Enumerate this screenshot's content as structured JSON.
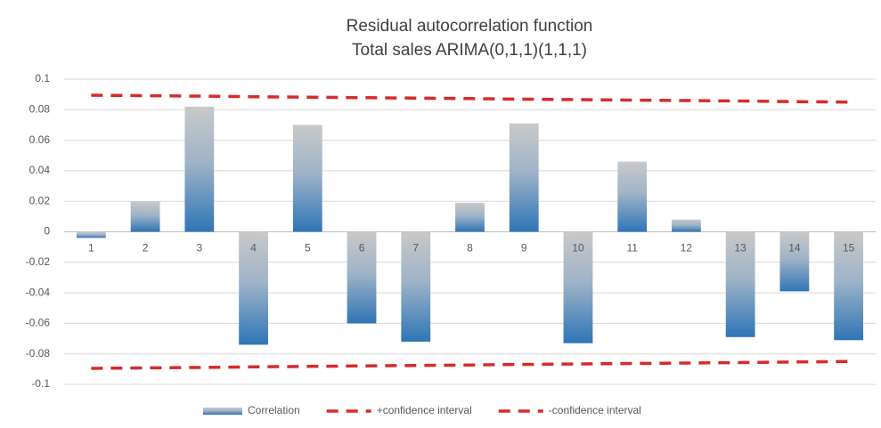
{
  "chart_data": {
    "type": "bar",
    "title": "Residual autocorrelation function",
    "subtitle": "Total sales ARIMA(0,1,1)(1,1,1)",
    "categories": [
      "1",
      "2",
      "3",
      "4",
      "5",
      "6",
      "7",
      "8",
      "9",
      "10",
      "11",
      "12",
      "13",
      "14",
      "15"
    ],
    "series": [
      {
        "name": "Correlation",
        "type": "bar",
        "color": "#2e75b6",
        "values": [
          -0.004,
          0.02,
          0.082,
          -0.074,
          0.07,
          -0.06,
          -0.072,
          0.019,
          0.071,
          -0.073,
          0.046,
          0.008,
          -0.069,
          -0.039,
          -0.071
        ]
      },
      {
        "name": "+confidence interval",
        "type": "line",
        "color": "#d62b2b",
        "values": [
          0.0895,
          0.0892,
          0.0889,
          0.0885,
          0.0882,
          0.0879,
          0.0876,
          0.0873,
          0.0869,
          0.0866,
          0.0863,
          0.086,
          0.0857,
          0.0853,
          0.085
        ]
      },
      {
        "name": "-confidence interval",
        "type": "line",
        "color": "#d62b2b",
        "values": [
          -0.0895,
          -0.0892,
          -0.0889,
          -0.0885,
          -0.0882,
          -0.0879,
          -0.0876,
          -0.0873,
          -0.0869,
          -0.0866,
          -0.0863,
          -0.086,
          -0.0857,
          -0.0853,
          -0.085
        ]
      }
    ],
    "ylim": [
      -0.1,
      0.1
    ],
    "yticks": [
      -0.1,
      -0.08,
      -0.06,
      -0.04,
      -0.02,
      0,
      0.02,
      0.04,
      0.06,
      0.08,
      0.1
    ],
    "grid": true,
    "legend": "bottom"
  }
}
